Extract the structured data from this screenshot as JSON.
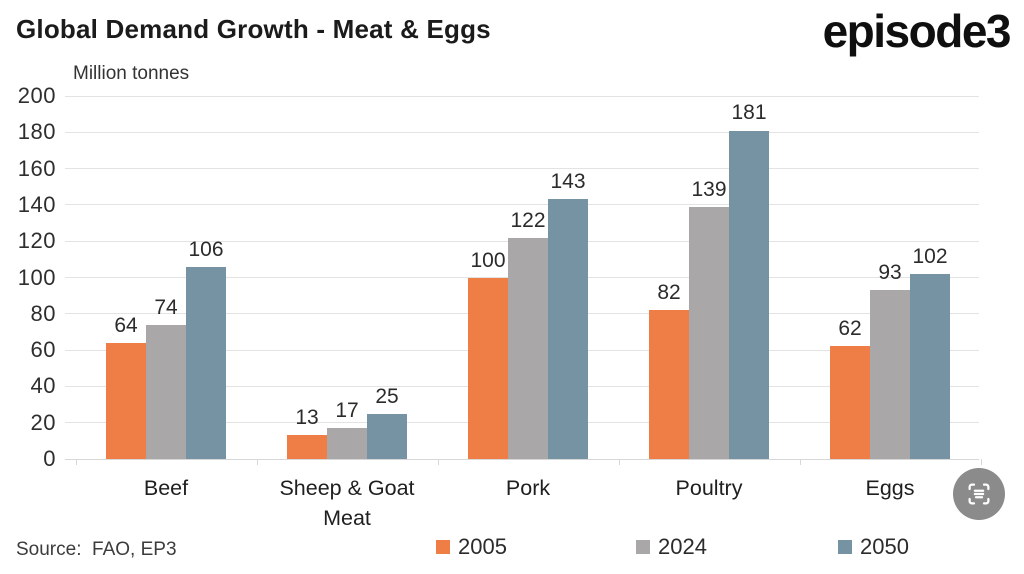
{
  "header": {
    "title": "Global Demand Growth - Meat & Eggs",
    "logo_text": "episode3"
  },
  "footer": {
    "source": "Source:  FAO, EP3"
  },
  "scan_button": {
    "icon": "scan-text-icon"
  },
  "colors": {
    "series_2005": "#ee7d46",
    "series_2024": "#a9a7a8",
    "series_2050": "#7693a3",
    "gridline": "#e3e3e3",
    "axis_line": "#d7d7d7",
    "scan_button_bg": "#8b8b8b",
    "title_text": "#1b1b1b",
    "label_text": "#2b2b2b"
  },
  "chart_data": {
    "type": "bar",
    "title": "Global Demand Growth - Meat & Eggs",
    "unit_label": "Million tonnes",
    "xlabel": "",
    "ylabel": "Million tonnes",
    "categories": [
      "Beef",
      "Sheep & Goat Meat",
      "Pork",
      "Poultry",
      "Eggs"
    ],
    "series": [
      {
        "name": "2005",
        "color": "#ee7d46",
        "values": [
          64,
          13,
          100,
          82,
          62
        ]
      },
      {
        "name": "2024",
        "color": "#a9a7a8",
        "values": [
          74,
          17,
          122,
          139,
          93
        ]
      },
      {
        "name": "2050",
        "color": "#7693a3",
        "values": [
          106,
          25,
          143,
          181,
          102
        ]
      }
    ],
    "ylim": [
      0,
      200
    ],
    "ytick_step": 20,
    "grid": true,
    "legend_position": "bottom",
    "value_labels": true
  }
}
